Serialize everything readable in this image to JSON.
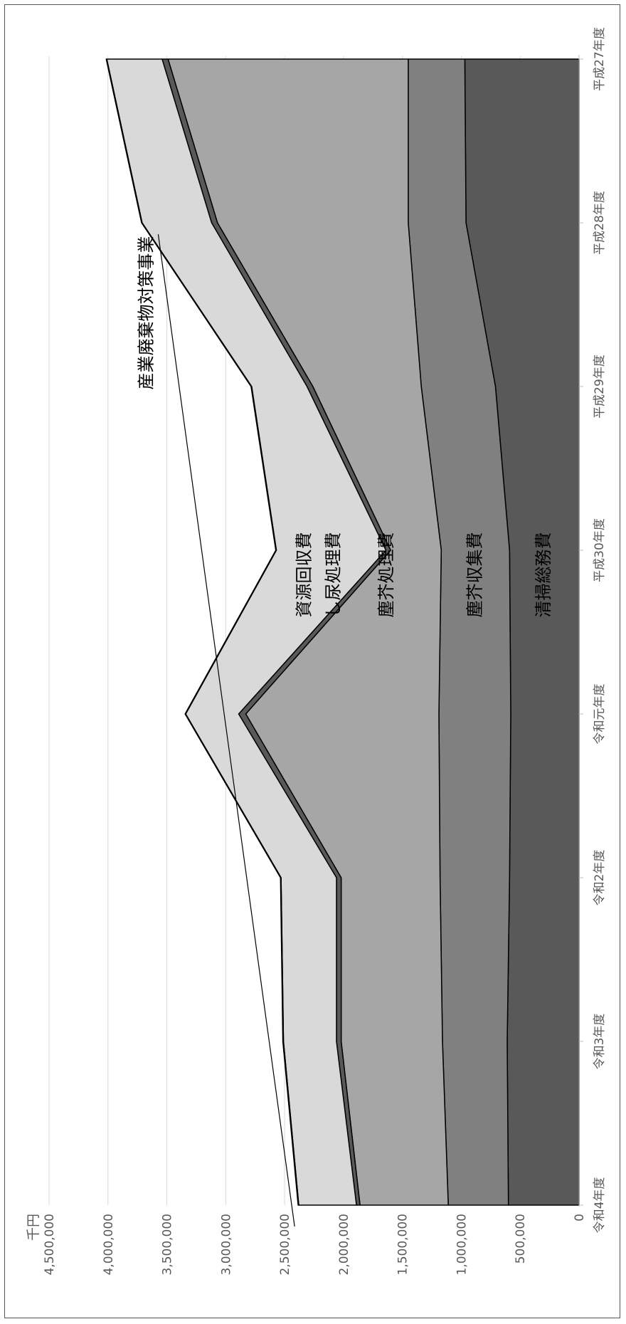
{
  "chart_data": {
    "type": "area",
    "stacked": true,
    "title": "",
    "unit_label": "千円",
    "ylim": [
      0,
      4500000
    ],
    "yticks": [
      0,
      500000,
      1000000,
      1500000,
      2000000,
      2500000,
      3000000,
      3500000,
      4000000,
      4500000
    ],
    "ytick_labels": [
      "0",
      "500,000",
      "1,000,000",
      "1,500,000",
      "2,000,000",
      "2,500,000",
      "3,000,000",
      "3,500,000",
      "4,000,000",
      "4,500,000"
    ],
    "categories": [
      "平成27年度",
      "平成28年度",
      "平成29年度",
      "平成30年度",
      "令和元年度",
      "令和2年度",
      "令和3年度",
      "令和4年度"
    ],
    "grid": true,
    "legend": "none (series labelled inside the areas)",
    "series": [
      {
        "name": "清掃総務費",
        "color": "#595959",
        "values": [
          970000,
          960000,
          710000,
          590000,
          580000,
          590000,
          610000,
          600000
        ]
      },
      {
        "name": "塵芥収集費",
        "color": "#808080",
        "values": [
          480000,
          490000,
          630000,
          580000,
          610000,
          590000,
          550000,
          510000
        ]
      },
      {
        "name": "塵芥処理費",
        "color": "#a6a6a6",
        "values": [
          2040000,
          1620000,
          920000,
          430000,
          1640000,
          840000,
          860000,
          750000
        ]
      },
      {
        "name": "し尿処理費",
        "color": "#595959",
        "values": [
          50000,
          50000,
          50000,
          40000,
          60000,
          40000,
          40000,
          30000
        ]
      },
      {
        "name": "資源回収費",
        "color": "#d9d9d9",
        "values": [
          470000,
          590000,
          470000,
          930000,
          450000,
          470000,
          450000,
          490000
        ]
      },
      {
        "name": "産業廃棄物対策事業",
        "color": "#c55a11",
        "values": [
          5000,
          5000,
          5000,
          5000,
          5000,
          5000,
          5000,
          5000
        ]
      }
    ]
  }
}
